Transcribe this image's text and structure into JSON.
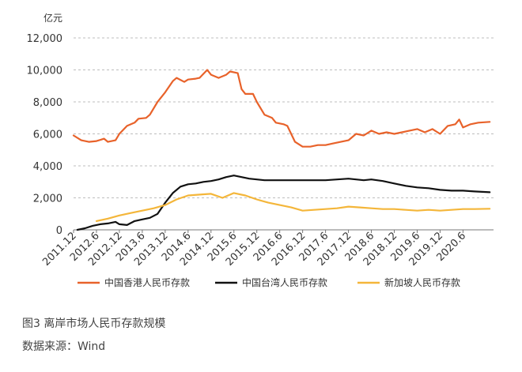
{
  "chart_data": {
    "type": "line",
    "unit": "亿元",
    "ylim": [
      0,
      12000
    ],
    "y_ticks": [
      0,
      2000,
      4000,
      6000,
      8000,
      10000,
      12000
    ],
    "y_tick_labels": [
      "0",
      "2,000",
      "4,000",
      "6,000",
      "8,000",
      "10,000",
      "12,000"
    ],
    "x_range": [
      "2011-12",
      "2021-02"
    ],
    "x_ticks": [
      "2011.12",
      "2012.6",
      "2012.12",
      "2013.6",
      "2013.12",
      "2014.6",
      "2014.12",
      "2015.6",
      "2015.12",
      "2016.6",
      "2016.12",
      "2017.6",
      "2017.12",
      "2018.6",
      "2018.12",
      "2019.6",
      "2019.12",
      "2020.6"
    ],
    "grid": "horizontal dashed",
    "legend_position": "bottom",
    "series": [
      {
        "name": "中国香港人民币存款",
        "color": "#E8622A",
        "points": [
          [
            "2011-12",
            5900
          ],
          [
            "2012-02",
            5600
          ],
          [
            "2012-04",
            5500
          ],
          [
            "2012-06",
            5550
          ],
          [
            "2012-08",
            5700
          ],
          [
            "2012-09",
            5500
          ],
          [
            "2012-11",
            5600
          ],
          [
            "2012-12",
            6000
          ],
          [
            "2013-02",
            6500
          ],
          [
            "2013-04",
            6700
          ],
          [
            "2013-05",
            6950
          ],
          [
            "2013-07",
            7000
          ],
          [
            "2013-08",
            7200
          ],
          [
            "2013-10",
            8000
          ],
          [
            "2013-12",
            8600
          ],
          [
            "2014-02",
            9300
          ],
          [
            "2014-03",
            9500
          ],
          [
            "2014-05",
            9250
          ],
          [
            "2014-06",
            9400
          ],
          [
            "2014-08",
            9450
          ],
          [
            "2014-09",
            9500
          ],
          [
            "2014-11",
            10000
          ],
          [
            "2014-12",
            9700
          ],
          [
            "2015-02",
            9500
          ],
          [
            "2015-04",
            9700
          ],
          [
            "2015-05",
            9900
          ],
          [
            "2015-07",
            9800
          ],
          [
            "2015-08",
            8800
          ],
          [
            "2015-09",
            8500
          ],
          [
            "2015-11",
            8500
          ],
          [
            "2015-12",
            8000
          ],
          [
            "2016-02",
            7200
          ],
          [
            "2016-04",
            7000
          ],
          [
            "2016-05",
            6700
          ],
          [
            "2016-07",
            6600
          ],
          [
            "2016-08",
            6500
          ],
          [
            "2016-10",
            5500
          ],
          [
            "2016-12",
            5200
          ],
          [
            "2017-02",
            5200
          ],
          [
            "2017-04",
            5300
          ],
          [
            "2017-06",
            5300
          ],
          [
            "2017-08",
            5400
          ],
          [
            "2017-10",
            5500
          ],
          [
            "2017-12",
            5600
          ],
          [
            "2018-02",
            6000
          ],
          [
            "2018-04",
            5900
          ],
          [
            "2018-06",
            6200
          ],
          [
            "2018-08",
            6000
          ],
          [
            "2018-10",
            6100
          ],
          [
            "2018-12",
            6000
          ],
          [
            "2019-02",
            6100
          ],
          [
            "2019-04",
            6200
          ],
          [
            "2019-06",
            6300
          ],
          [
            "2019-08",
            6100
          ],
          [
            "2019-10",
            6300
          ],
          [
            "2019-12",
            6000
          ],
          [
            "2020-02",
            6500
          ],
          [
            "2020-04",
            6600
          ],
          [
            "2020-05",
            6900
          ],
          [
            "2020-06",
            6400
          ],
          [
            "2020-08",
            6600
          ],
          [
            "2020-10",
            6700
          ],
          [
            "2021-01",
            6750
          ]
        ]
      },
      {
        "name": "中国台湾人民币存款",
        "color": "#111111",
        "points": [
          [
            "2012-01",
            0
          ],
          [
            "2012-03",
            100
          ],
          [
            "2012-05",
            250
          ],
          [
            "2012-07",
            350
          ],
          [
            "2012-09",
            400
          ],
          [
            "2012-11",
            500
          ],
          [
            "2012-12",
            350
          ],
          [
            "2013-02",
            300
          ],
          [
            "2013-04",
            550
          ],
          [
            "2013-06",
            650
          ],
          [
            "2013-08",
            750
          ],
          [
            "2013-10",
            1000
          ],
          [
            "2013-12",
            1700
          ],
          [
            "2014-02",
            2300
          ],
          [
            "2014-04",
            2700
          ],
          [
            "2014-06",
            2850
          ],
          [
            "2014-08",
            2900
          ],
          [
            "2014-10",
            3000
          ],
          [
            "2014-12",
            3050
          ],
          [
            "2015-02",
            3150
          ],
          [
            "2015-04",
            3300
          ],
          [
            "2015-06",
            3400
          ],
          [
            "2015-08",
            3300
          ],
          [
            "2015-10",
            3200
          ],
          [
            "2015-12",
            3150
          ],
          [
            "2016-02",
            3100
          ],
          [
            "2016-06",
            3100
          ],
          [
            "2016-12",
            3100
          ],
          [
            "2017-06",
            3100
          ],
          [
            "2017-09",
            3150
          ],
          [
            "2017-12",
            3200
          ],
          [
            "2018-02",
            3150
          ],
          [
            "2018-04",
            3100
          ],
          [
            "2018-06",
            3150
          ],
          [
            "2018-09",
            3050
          ],
          [
            "2018-12",
            2900
          ],
          [
            "2019-03",
            2750
          ],
          [
            "2019-06",
            2650
          ],
          [
            "2019-09",
            2600
          ],
          [
            "2019-12",
            2500
          ],
          [
            "2020-03",
            2450
          ],
          [
            "2020-06",
            2450
          ],
          [
            "2020-09",
            2400
          ],
          [
            "2021-01",
            2350
          ]
        ]
      },
      {
        "name": "新加坡人民币存款",
        "color": "#F4B63A",
        "points": [
          [
            "2012-06",
            550
          ],
          [
            "2012-09",
            700
          ],
          [
            "2012-12",
            900
          ],
          [
            "2013-03",
            1050
          ],
          [
            "2013-06",
            1200
          ],
          [
            "2013-09",
            1350
          ],
          [
            "2013-12",
            1550
          ],
          [
            "2014-03",
            1900
          ],
          [
            "2014-06",
            2150
          ],
          [
            "2014-09",
            2200
          ],
          [
            "2014-12",
            2250
          ],
          [
            "2015-03",
            2000
          ],
          [
            "2015-06",
            2300
          ],
          [
            "2015-09",
            2150
          ],
          [
            "2015-12",
            1900
          ],
          [
            "2016-03",
            1700
          ],
          [
            "2016-06",
            1550
          ],
          [
            "2016-09",
            1400
          ],
          [
            "2016-12",
            1200
          ],
          [
            "2017-03",
            1250
          ],
          [
            "2017-06",
            1300
          ],
          [
            "2017-09",
            1350
          ],
          [
            "2017-12",
            1450
          ],
          [
            "2018-03",
            1400
          ],
          [
            "2018-06",
            1350
          ],
          [
            "2018-09",
            1300
          ],
          [
            "2018-12",
            1300
          ],
          [
            "2019-03",
            1250
          ],
          [
            "2019-06",
            1200
          ],
          [
            "2019-09",
            1250
          ],
          [
            "2019-12",
            1200
          ],
          [
            "2020-03",
            1250
          ],
          [
            "2020-06",
            1300
          ],
          [
            "2020-09",
            1300
          ],
          [
            "2021-01",
            1320
          ]
        ]
      }
    ]
  },
  "caption": {
    "title": "图3  离岸市场人民币存款规模",
    "source": "数据来源：Wind"
  }
}
